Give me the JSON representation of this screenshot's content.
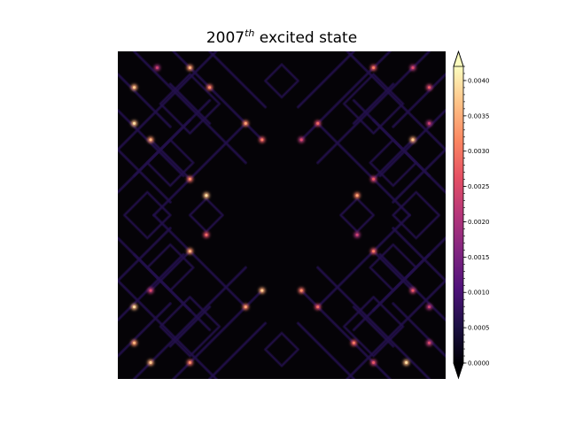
{
  "chart_data": {
    "type": "heatmap",
    "title_base": "2007",
    "title_sup": "th",
    "title_rest": " excited state",
    "xlabel": "",
    "ylabel": "",
    "grid": false,
    "colormap": "magma",
    "colormap_stops": [
      "#000004",
      "#1c1044",
      "#4f127b",
      "#812581",
      "#b5367a",
      "#e55064",
      "#fb8761",
      "#fec287",
      "#fcfdbf"
    ],
    "colorbar": {
      "vmin": 0.0,
      "vmax": 0.0042,
      "extend": "both",
      "tick_values": [
        0.0,
        0.0005,
        0.001,
        0.0015,
        0.002,
        0.0025,
        0.003,
        0.0035,
        0.004
      ],
      "tick_labels": [
        "0.0000",
        "0.0005",
        "0.0010",
        "0.0015",
        "0.0020",
        "0.0025",
        "0.0030",
        "0.0035",
        "0.0040"
      ],
      "minor_tick_step": 0.0001
    },
    "field": {
      "description_of_values": "probability density on a square lattice",
      "typical_line_value": 0.0006,
      "hotspot_value_range": [
        0.002,
        0.0036
      ],
      "hotspots_grid_units": [
        [
          0.12,
          0.05
        ],
        [
          0.22,
          0.05
        ],
        [
          0.78,
          0.05
        ],
        [
          0.9,
          0.05
        ],
        [
          0.05,
          0.11
        ],
        [
          0.28,
          0.11
        ],
        [
          0.95,
          0.11
        ],
        [
          0.05,
          0.22
        ],
        [
          0.39,
          0.22
        ],
        [
          0.61,
          0.22
        ],
        [
          0.95,
          0.22
        ],
        [
          0.1,
          0.27
        ],
        [
          0.44,
          0.27
        ],
        [
          0.56,
          0.27
        ],
        [
          0.9,
          0.27
        ],
        [
          0.22,
          0.39
        ],
        [
          0.78,
          0.39
        ],
        [
          0.27,
          0.44
        ],
        [
          0.73,
          0.44
        ],
        [
          0.27,
          0.56
        ],
        [
          0.73,
          0.56
        ],
        [
          0.22,
          0.61
        ],
        [
          0.78,
          0.61
        ],
        [
          0.1,
          0.73
        ],
        [
          0.44,
          0.73
        ],
        [
          0.56,
          0.73
        ],
        [
          0.9,
          0.73
        ],
        [
          0.05,
          0.78
        ],
        [
          0.39,
          0.78
        ],
        [
          0.61,
          0.78
        ],
        [
          0.95,
          0.78
        ],
        [
          0.05,
          0.89
        ],
        [
          0.72,
          0.89
        ],
        [
          0.95,
          0.89
        ],
        [
          0.1,
          0.95
        ],
        [
          0.22,
          0.95
        ],
        [
          0.78,
          0.95
        ],
        [
          0.88,
          0.95
        ]
      ]
    }
  }
}
